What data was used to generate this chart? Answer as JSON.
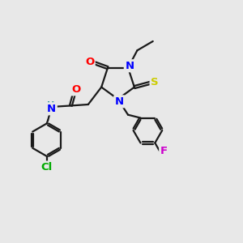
{
  "bg_color": "#e8e8e8",
  "bond_color": "#1a1a1a",
  "bond_width": 1.6,
  "atom_colors": {
    "N": "#0000ff",
    "O": "#ff0000",
    "S": "#cccc00",
    "F": "#cc00cc",
    "Cl": "#00aa00",
    "H": "#3a9a9a",
    "C": "#1a1a1a"
  },
  "fs": 9.5,
  "xlim": [
    0,
    10
  ],
  "ylim": [
    0,
    10
  ]
}
